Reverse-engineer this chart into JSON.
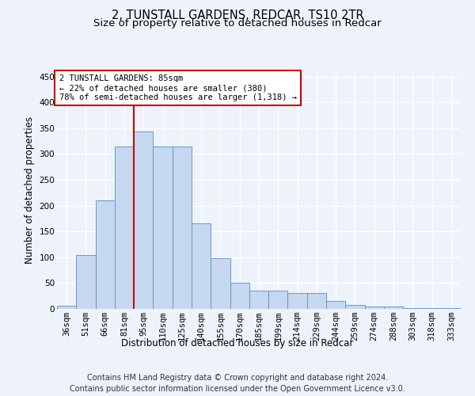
{
  "title": "2, TUNSTALL GARDENS, REDCAR, TS10 2TR",
  "subtitle": "Size of property relative to detached houses in Redcar",
  "xlabel": "Distribution of detached houses by size in Redcar",
  "ylabel": "Number of detached properties",
  "categories": [
    "36sqm",
    "51sqm",
    "66sqm",
    "81sqm",
    "95sqm",
    "110sqm",
    "125sqm",
    "140sqm",
    "155sqm",
    "170sqm",
    "185sqm",
    "199sqm",
    "214sqm",
    "229sqm",
    "244sqm",
    "259sqm",
    "274sqm",
    "288sqm",
    "303sqm",
    "318sqm",
    "333sqm"
  ],
  "values": [
    6,
    105,
    210,
    314,
    343,
    315,
    315,
    166,
    98,
    50,
    35,
    35,
    30,
    30,
    15,
    8,
    5,
    5,
    2,
    1,
    1
  ],
  "bar_color": "#c5d8f0",
  "bar_edge_color": "#5a8fc0",
  "annotation_text": "2 TUNSTALL GARDENS: 85sqm\n← 22% of detached houses are smaller (380)\n78% of semi-detached houses are larger (1,318) →",
  "annotation_box_color": "#ffffff",
  "annotation_box_edge_color": "#cc0000",
  "vline_color": "#cc0000",
  "vline_x": 3.5,
  "ylim": [
    0,
    460
  ],
  "yticks": [
    0,
    50,
    100,
    150,
    200,
    250,
    300,
    350,
    400,
    450
  ],
  "footer_line1": "Contains HM Land Registry data © Crown copyright and database right 2024.",
  "footer_line2": "Contains public sector information licensed under the Open Government Licence v3.0.",
  "bg_color": "#eef2fa",
  "grid_color": "#ffffff",
  "title_fontsize": 10.5,
  "subtitle_fontsize": 9.5,
  "xlabel_fontsize": 8.5,
  "ylabel_fontsize": 8.5,
  "tick_fontsize": 7.5,
  "footer_fontsize": 7,
  "annotation_fontsize": 7.5
}
